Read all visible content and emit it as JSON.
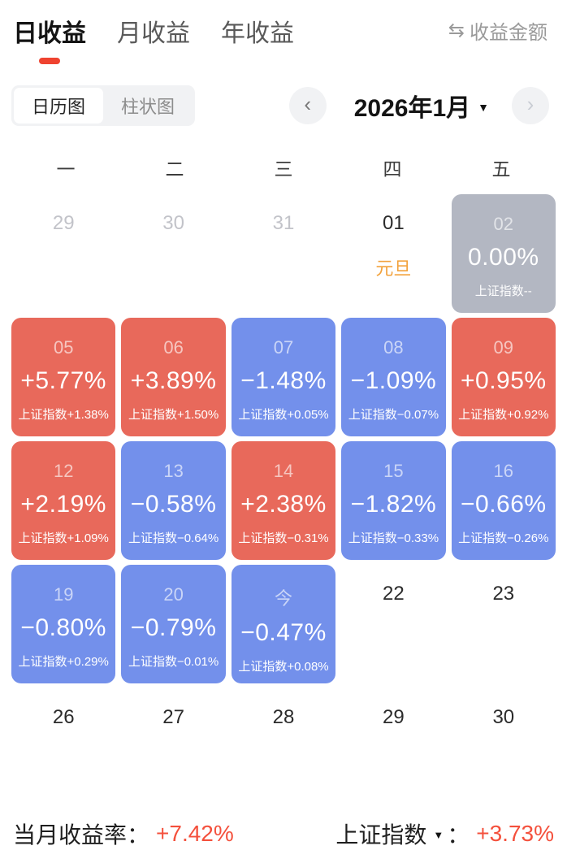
{
  "header": {
    "tabs": [
      {
        "label": "日收益",
        "active": true
      },
      {
        "label": "月收益",
        "active": false
      },
      {
        "label": "年收益",
        "active": false
      }
    ],
    "amount_toggle": {
      "icon": "⇆",
      "label": "收益金额"
    }
  },
  "toolbar": {
    "segments": [
      {
        "label": "日历图",
        "active": true
      },
      {
        "label": "柱状图",
        "active": false
      }
    ],
    "nav": {
      "prev_icon": "‹",
      "title": "2026年1月",
      "dropdown_icon": "▼",
      "next_icon": "›"
    }
  },
  "calendar": {
    "weekdays": [
      "一",
      "二",
      "三",
      "四",
      "五"
    ],
    "cells": [
      {
        "day": "29",
        "type": "prev"
      },
      {
        "day": "30",
        "type": "prev"
      },
      {
        "day": "31",
        "type": "prev"
      },
      {
        "day": "01",
        "type": "plain",
        "holiday": "元旦"
      },
      {
        "day": "02",
        "type": "flat",
        "value": "0.00%",
        "index": "上证指数--"
      },
      {
        "day": "05",
        "type": "up",
        "value": "+5.77%",
        "index": "上证指数+1.38%"
      },
      {
        "day": "06",
        "type": "up",
        "value": "+3.89%",
        "index": "上证指数+1.50%"
      },
      {
        "day": "07",
        "type": "down",
        "value": "−1.48%",
        "index": "上证指数+0.05%"
      },
      {
        "day": "08",
        "type": "down",
        "value": "−1.09%",
        "index": "上证指数−0.07%"
      },
      {
        "day": "09",
        "type": "up",
        "value": "+0.95%",
        "index": "上证指数+0.92%"
      },
      {
        "day": "12",
        "type": "up",
        "value": "+2.19%",
        "index": "上证指数+1.09%"
      },
      {
        "day": "13",
        "type": "down",
        "value": "−0.58%",
        "index": "上证指数−0.64%"
      },
      {
        "day": "14",
        "type": "up",
        "value": "+2.38%",
        "index": "上证指数−0.31%"
      },
      {
        "day": "15",
        "type": "down",
        "value": "−1.82%",
        "index": "上证指数−0.33%"
      },
      {
        "day": "16",
        "type": "down",
        "value": "−0.66%",
        "index": "上证指数−0.26%"
      },
      {
        "day": "19",
        "type": "down",
        "value": "−0.80%",
        "index": "上证指数+0.29%"
      },
      {
        "day": "20",
        "type": "down",
        "value": "−0.79%",
        "index": "上证指数−0.01%"
      },
      {
        "day": "今",
        "type": "down",
        "value": "−0.47%",
        "index": "上证指数+0.08%"
      },
      {
        "day": "22",
        "type": "plain"
      },
      {
        "day": "23",
        "type": "plain"
      },
      {
        "day": "26",
        "type": "plain"
      },
      {
        "day": "27",
        "type": "plain"
      },
      {
        "day": "28",
        "type": "plain"
      },
      {
        "day": "29",
        "type": "plain"
      },
      {
        "day": "30",
        "type": "plain"
      }
    ]
  },
  "summary": {
    "left": {
      "label": "当月收益率：",
      "value": "+7.42%"
    },
    "right": {
      "label": "上证指数",
      "dropdown_icon": "▼",
      "colon": "：",
      "value": "+3.73%"
    }
  },
  "colors": {
    "up": "#e8695b",
    "down": "#7390eb",
    "flat": "#b3b7c2",
    "accent_red": "#ef4330",
    "value_red": "#f4503c",
    "holiday_orange": "#f2a23c"
  }
}
